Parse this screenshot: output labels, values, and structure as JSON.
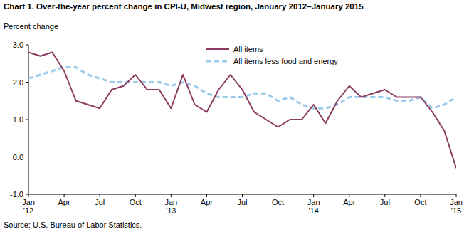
{
  "chart_data": {
    "type": "line",
    "title": "Chart 1. Over-the-year percent change in CPI-U, Midwest region, January 2012–January 2015",
    "y_label": "Percent change",
    "source": "Source: U.S. Bureau of Labor Statistics.",
    "categories": [
      "Jan\n'12",
      null,
      null,
      "Apr",
      null,
      null,
      "Jul",
      null,
      null,
      "Oct",
      null,
      null,
      "Jan\n'13",
      null,
      null,
      "Apr",
      null,
      null,
      "Jul",
      null,
      null,
      "Oct",
      null,
      null,
      "Jan\n'14",
      null,
      null,
      "Apr",
      null,
      null,
      "Jul",
      null,
      null,
      "Oct",
      null,
      null,
      "Jan\n'15"
    ],
    "series": [
      {
        "name": "All items",
        "color": "#8b3a62",
        "line_style": "solid",
        "values": [
          2.8,
          2.7,
          2.8,
          2.3,
          1.5,
          1.4,
          1.3,
          1.8,
          1.9,
          2.2,
          1.8,
          1.8,
          1.3,
          2.2,
          1.4,
          1.2,
          1.8,
          2.2,
          1.8,
          1.2,
          1.0,
          0.8,
          1.0,
          1.0,
          1.4,
          0.9,
          1.5,
          1.9,
          1.6,
          1.7,
          1.8,
          1.6,
          1.6,
          1.6,
          1.2,
          0.7,
          -0.3
        ]
      },
      {
        "name": "All items less food and energy",
        "color": "#9ccbea",
        "line_style": "dashed",
        "values": [
          2.1,
          2.2,
          2.3,
          2.4,
          2.4,
          2.2,
          2.1,
          2.0,
          2.0,
          2.0,
          2.0,
          2.0,
          1.9,
          2.0,
          1.9,
          1.7,
          1.6,
          1.6,
          1.6,
          1.7,
          1.7,
          1.5,
          1.6,
          1.4,
          1.3,
          1.3,
          1.4,
          1.6,
          1.6,
          1.6,
          1.6,
          1.5,
          1.5,
          1.6,
          1.3,
          1.4,
          1.6
        ]
      }
    ],
    "ylim": [
      -1.0,
      3.0
    ],
    "yticks": [
      {
        "value": -1.0,
        "label": "-1.0"
      },
      {
        "value": 0.0,
        "label": "0.0"
      },
      {
        "value": 1.0,
        "label": "1.0"
      },
      {
        "value": 2.0,
        "label": "2.0"
      },
      {
        "value": 3.0,
        "label": "3.0"
      }
    ],
    "grid": false,
    "legend": "top-center"
  }
}
